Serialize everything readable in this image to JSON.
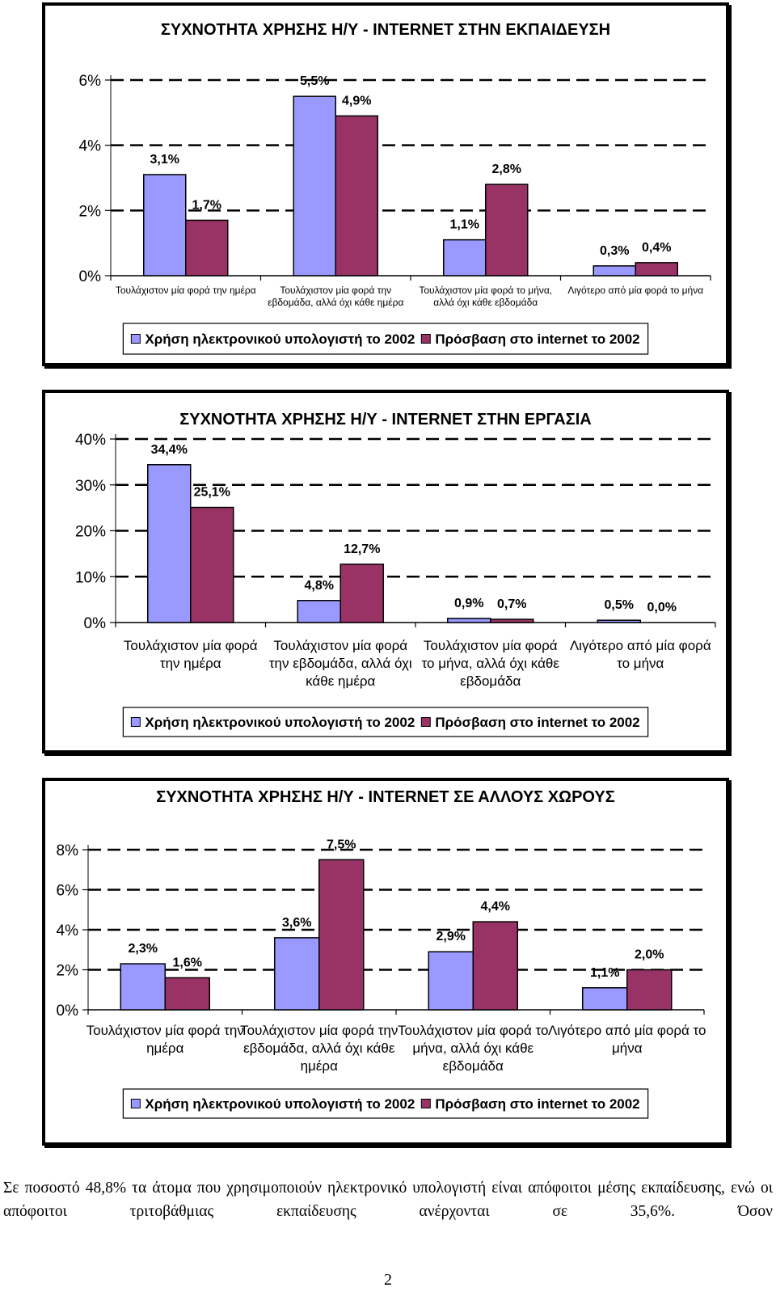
{
  "chart_data": [
    {
      "type": "bar",
      "title": "ΣΥΧΝΟΤΗΤΑ ΧΡΗΣΗΣ Η/Υ - INTERNET ΣΤΗΝ ΕΚΠΑΙΔΕΥΣΗ",
      "categories": [
        "Τουλάχιστον μία φορά την ημέρα",
        "Τουλάχιστον μία φορά την εβδομάδα, αλλά όχι κάθε ημέρα",
        "Τουλάχιστον μία φορά το μήνα, αλλά όχι κάθε εβδομάδα",
        "Λιγότερο από μία φορά το μήνα"
      ],
      "series": [
        {
          "name": "Χρήση ηλεκτρονικού υπολογιστή το 2002",
          "values": [
            3.1,
            5.5,
            1.1,
            0.3
          ],
          "labels": [
            "3,1%",
            "5,5%",
            "1,1%",
            "0,3%"
          ]
        },
        {
          "name": "Πρόσβαση στο internet το 2002",
          "values": [
            1.7,
            4.9,
            2.8,
            0.4
          ],
          "labels": [
            "1,7%",
            "4,9%",
            "2,8%",
            "0,4%"
          ]
        }
      ],
      "ylim": [
        0,
        6
      ],
      "yticks": [
        0,
        2,
        4,
        6
      ],
      "ytick_labels": [
        "0%",
        "2%",
        "4%",
        "6%"
      ],
      "grid": true,
      "legend": "bottom",
      "colors": [
        "#9999ff",
        "#993366"
      ]
    },
    {
      "type": "bar",
      "title": "ΣΥΧΝΟΤΗΤΑ ΧΡΗΣΗΣ Η/Υ - INTERNET ΣΤΗΝ ΕΡΓΑΣΙΑ",
      "categories": [
        "Τουλάχιστον μία φορά την ημέρα",
        "Τουλάχιστον μία φορά την εβδομάδα, αλλά όχι κάθε ημέρα",
        "Τουλάχιστον μία φορά το μήνα, αλλά όχι κάθε εβδομάδα",
        "Λιγότερο από μία φορά το μήνα"
      ],
      "series": [
        {
          "name": "Χρήση ηλεκτρονικού υπολογιστή το 2002",
          "values": [
            34.4,
            4.8,
            0.9,
            0.5
          ],
          "labels": [
            "34,4%",
            "4,8%",
            "0,9%",
            "0,5%"
          ]
        },
        {
          "name": "Πρόσβαση στο internet  το 2002",
          "values": [
            25.1,
            12.7,
            0.7,
            0.0
          ],
          "labels": [
            "25,1%",
            "12,7%",
            "0,7%",
            "0,0%"
          ]
        }
      ],
      "ylim": [
        0,
        40
      ],
      "yticks": [
        0,
        10,
        20,
        30,
        40
      ],
      "ytick_labels": [
        "0%",
        "10%",
        "20%",
        "30%",
        "40%"
      ],
      "grid": true,
      "legend": "bottom",
      "colors": [
        "#9999ff",
        "#993366"
      ]
    },
    {
      "type": "bar",
      "title": "ΣΥΧΝΟΤΗΤΑ ΧΡΗΣΗΣ Η/Υ - INTERNET ΣΕ ΑΛΛΟΥΣ ΧΩΡΟΥΣ",
      "categories": [
        "Τουλάχιστον μία φορά την ημέρα",
        "Τουλάχιστον μία φορά την εβδομάδα, αλλά όχι κάθε ημέρα",
        "Τουλάχιστον μία φορά το μήνα, αλλά όχι κάθε εβδομάδα",
        "Λιγότερο από μία φορά το μήνα"
      ],
      "series": [
        {
          "name": "Χρήση ηλεκτρονικού υπολογιστή το 2002",
          "values": [
            2.3,
            3.6,
            2.9,
            1.1
          ],
          "labels": [
            "2,3%",
            "3,6%",
            "2,9%",
            "1,1%"
          ]
        },
        {
          "name": "Πρόσβαση στο internet το 2002",
          "values": [
            1.6,
            7.5,
            4.4,
            2.0
          ],
          "labels": [
            "1,6%",
            "7,5%",
            "4,4%",
            "2,0%"
          ]
        }
      ],
      "ylim": [
        0,
        8
      ],
      "yticks": [
        0,
        2,
        4,
        6,
        8
      ],
      "ytick_labels": [
        "0%",
        "2%",
        "4%",
        "6%",
        "8%"
      ],
      "grid": true,
      "legend": "bottom",
      "colors": [
        "#9999ff",
        "#993366"
      ]
    }
  ],
  "body_text": "Σε ποσοστό 48,8% τα άτομα που χρησιμοποιούν ηλεκτρονικό υπολογιστή είναι απόφοιτοι μέσης εκπαίδευσης, ενώ οι απόφοιτοι τριτοβάθμιας εκπαίδευσης ανέρχονται σε 35,6%. Όσον",
  "page_number": "2"
}
